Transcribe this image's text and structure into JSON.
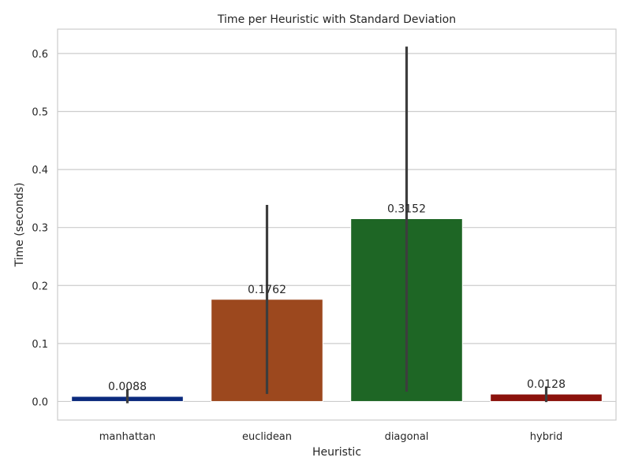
{
  "chart_data": {
    "type": "bar",
    "title": "Time per Heuristic with Standard Deviation",
    "xlabel": "Heuristic",
    "ylabel": "Time (seconds)",
    "ylim": [
      -0.032,
      0.642
    ],
    "yticks": [
      "0.0",
      "0.1",
      "0.2",
      "0.3",
      "0.4",
      "0.5",
      "0.6"
    ],
    "grid": true,
    "categories": [
      "manhattan",
      "euclidean",
      "diagonal",
      "hybrid"
    ],
    "values": [
      0.0088,
      0.1762,
      0.3152,
      0.0128
    ],
    "value_labels": [
      "0.0088",
      "0.1762",
      "0.3152",
      "0.0128"
    ],
    "error_low": [
      -0.003,
      0.013,
      0.017,
      -0.001
    ],
    "error_high": [
      0.021,
      0.339,
      0.612,
      0.026
    ],
    "colors": [
      "#0b2a7d",
      "#9c481e",
      "#1e6625",
      "#8b120c"
    ]
  }
}
